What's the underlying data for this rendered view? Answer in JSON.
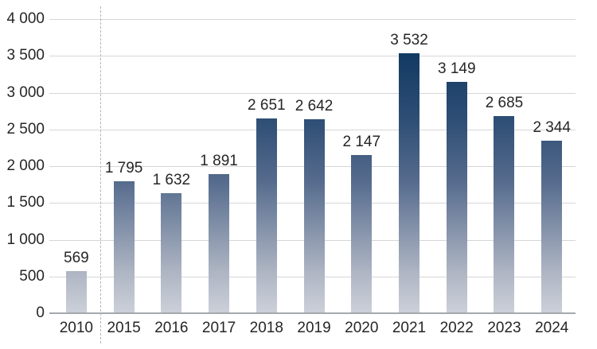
{
  "chart_data": {
    "type": "bar",
    "title": "",
    "xlabel": "",
    "ylabel": "",
    "categories": [
      "2010",
      "2015",
      "2016",
      "2017",
      "2018",
      "2019",
      "2020",
      "2021",
      "2022",
      "2023",
      "2024"
    ],
    "values": [
      569,
      1795,
      1632,
      1891,
      2651,
      2642,
      2147,
      3532,
      3149,
      2685,
      2344
    ],
    "value_labels": [
      "569",
      "1 795",
      "1 632",
      "1 891",
      "2 651",
      "2 642",
      "2 147",
      "3 532",
      "3 149",
      "2 685",
      "2 344"
    ],
    "ylim": [
      0,
      4000
    ],
    "ytick_step": 500,
    "ytick_labels": [
      "4 000",
      "3 500",
      "3 000",
      "2 500",
      "2 000",
      "1 500",
      "1 000",
      "500",
      "0"
    ],
    "grid": "horizontal",
    "legend_position": "none",
    "separator": {
      "type": "dashed-vertical-line",
      "between": [
        "2010",
        "2015"
      ]
    },
    "colors": {
      "bar_gradient_top": "#0b315c",
      "bar_gradient_bottom": "#ccd0d9",
      "gridline": "#d6d6d6",
      "axis_line": "#a5a8ad",
      "text": "#262626",
      "separator_line": "#b5b5b5",
      "background": "#ffffff"
    }
  }
}
